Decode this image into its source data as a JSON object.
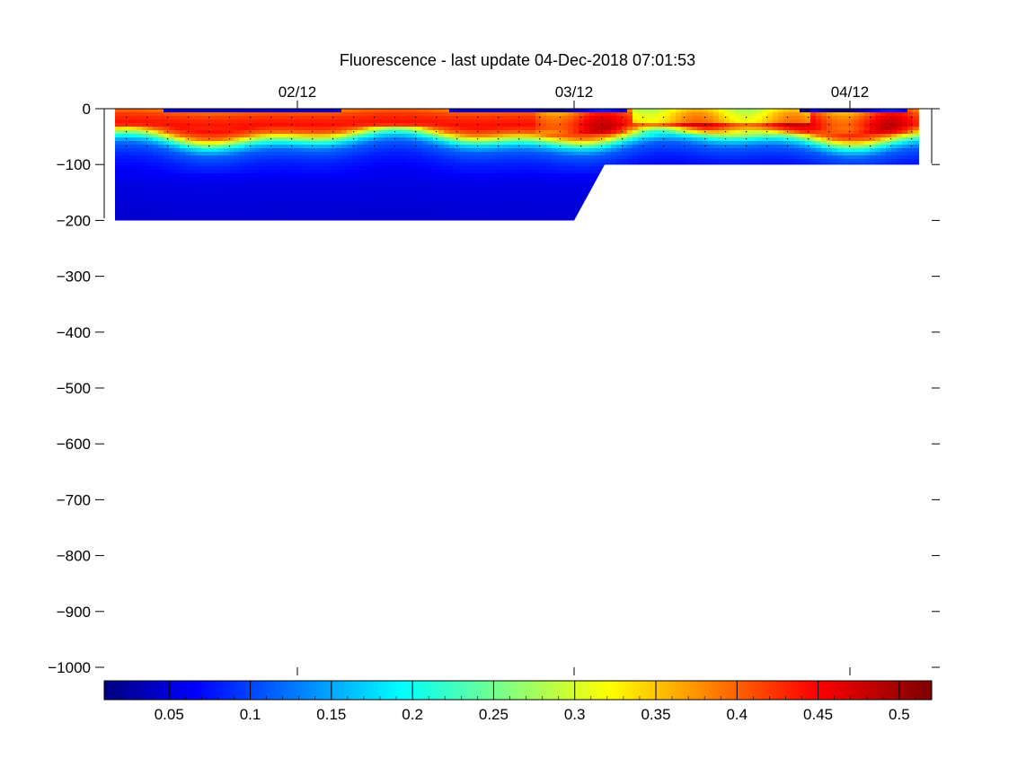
{
  "chart_data": {
    "type": "heatmap",
    "title": "Fluorescence - last update 04-Dec-2018 07:01:53",
    "xlabel": "",
    "ylabel": "",
    "x_ticks": [
      "02/12",
      "03/12",
      "04/12"
    ],
    "y_ticks": [
      0,
      -100,
      -200,
      -300,
      -400,
      -500,
      -600,
      -700,
      -800,
      -900,
      -1000
    ],
    "ylim": [
      -1000,
      0
    ],
    "grid": false,
    "colormap": "jet",
    "colorbar": {
      "range": [
        0.01,
        0.52
      ],
      "ticks": [
        "0.05",
        "0.1",
        "0.15",
        "0.2",
        "0.25",
        "0.3",
        "0.35",
        "0.4",
        "0.45",
        "0.5"
      ],
      "placement": "bottom"
    },
    "coverage": [
      {
        "segment": "02/12 to 03/12",
        "depth_min": -200,
        "depth_max": 0
      },
      {
        "segment": "after 03/12",
        "depth_min": -100,
        "depth_max": 0
      }
    ],
    "profile_summary": [
      {
        "depth_range": "0 to -40",
        "fluorescence": 0.43
      },
      {
        "depth_range": "-40 to -65",
        "fluorescence": 0.25
      },
      {
        "depth_range": "-65 to -100",
        "fluorescence": 0.1
      },
      {
        "depth_range": "-100 to -200",
        "fluorescence": 0.06
      }
    ]
  }
}
